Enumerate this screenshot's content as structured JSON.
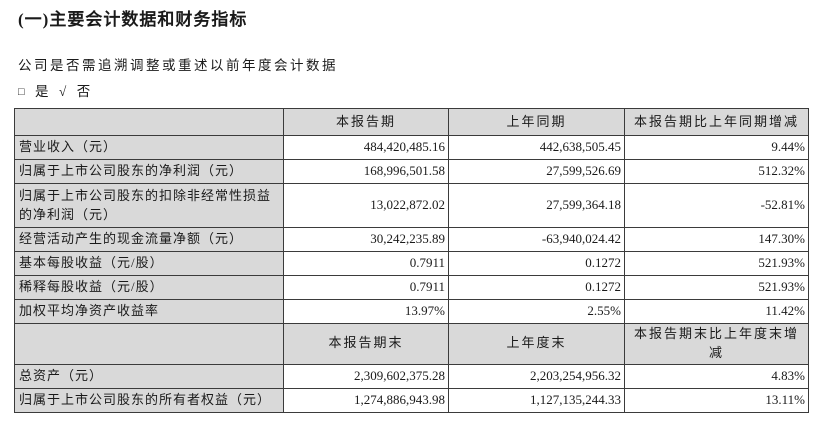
{
  "section": {
    "title": "(一)主要会计数据和财务指标",
    "question": "公司是否需追溯调整或重述以前年度会计数据",
    "answer": {
      "unchecked_symbol": "□",
      "yes_label": "是",
      "check_symbol": "√",
      "no_label": "否"
    }
  },
  "table": {
    "period_header": {
      "label": "",
      "current": "本报告期",
      "prior": "上年同期",
      "change": "本报告期比上年同期增减"
    },
    "period_rows": [
      {
        "label": "营业收入（元）",
        "current": "484,420,485.16",
        "prior": "442,638,505.45",
        "change": "9.44%"
      },
      {
        "label": "归属于上市公司股东的净利润（元）",
        "current": "168,996,501.58",
        "prior": "27,599,526.69",
        "change": "512.32%"
      },
      {
        "label": "归属于上市公司股东的扣除非经常性损益的净利润（元）",
        "current": "13,022,872.02",
        "prior": "27,599,364.18",
        "change": "-52.81%"
      },
      {
        "label": "经营活动产生的现金流量净额（元）",
        "current": "30,242,235.89",
        "prior": "-63,940,024.42",
        "change": "147.30%"
      },
      {
        "label": "基本每股收益（元/股）",
        "current": "0.7911",
        "prior": "0.1272",
        "change": "521.93%"
      },
      {
        "label": "稀释每股收益（元/股）",
        "current": "0.7911",
        "prior": "0.1272",
        "change": "521.93%"
      },
      {
        "label": "加权平均净资产收益率",
        "current": "13.97%",
        "prior": "2.55%",
        "change": "11.42%"
      }
    ],
    "period_end_header": {
      "label": "",
      "current": "本报告期末",
      "prior": "上年度末",
      "change": "本报告期末比上年度末增减"
    },
    "period_end_rows": [
      {
        "label": "总资产（元）",
        "current": "2,309,602,375.28",
        "prior": "2,203,254,956.32",
        "change": "4.83%"
      },
      {
        "label": "归属于上市公司股东的所有者权益（元）",
        "current": "1,274,886,943.98",
        "prior": "1,127,135,244.33",
        "change": "13.11%"
      }
    ]
  },
  "colors": {
    "cell_shading": "#d9d9d9",
    "border": "#3b3b3b",
    "text": "#1a1a1a",
    "background": "#ffffff"
  }
}
